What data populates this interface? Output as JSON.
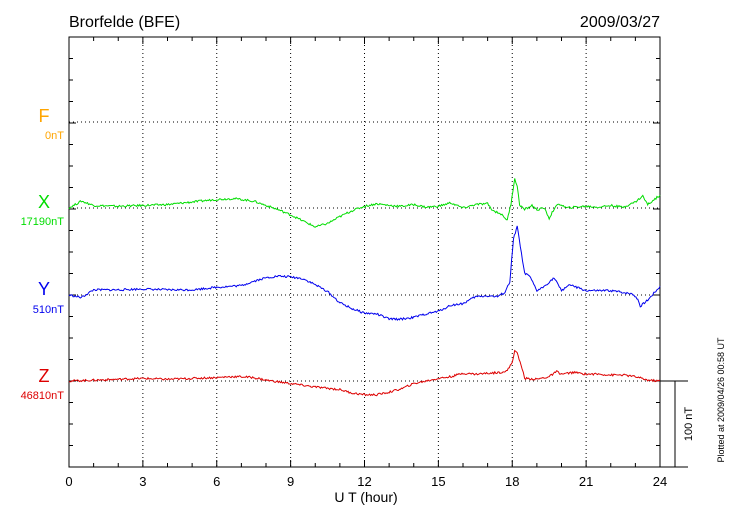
{
  "chart_data": {
    "type": "line",
    "title": "Brorfelde (BFE)",
    "date": "2009/03/27",
    "xlabel": "U T (hour)",
    "xlim": [
      0,
      24
    ],
    "xticks": [
      "0",
      "3",
      "6",
      "9",
      "12",
      "15",
      "18",
      "21",
      "24"
    ],
    "scale_bar_label": "100 nT",
    "plotted_note": "Plotted at 2009/04/26 00:58 UT",
    "grid": true,
    "series": [
      {
        "name": "F",
        "baseline_label": "0nT",
        "color": "#ffa500",
        "values": []
      },
      {
        "name": "X",
        "baseline_label": "17190nT",
        "color": "#00dd00",
        "x": [
          0,
          0.5,
          1,
          2,
          3,
          4,
          5,
          6,
          6.7,
          7.5,
          8,
          8.5,
          9,
          9.5,
          10,
          10.5,
          11,
          11.5,
          12,
          12.5,
          13,
          13.5,
          14,
          14.5,
          15,
          15.5,
          16,
          16.5,
          17,
          17.2,
          17.5,
          17.8,
          17.95,
          18.1,
          18.2,
          18.3,
          18.5,
          18.8,
          19,
          19.3,
          19.5,
          19.7,
          19.9,
          20.2,
          20.5,
          21,
          21.5,
          22,
          22.5,
          23,
          23.3,
          23.5,
          24
        ],
        "values": [
          0,
          8,
          3,
          2,
          3,
          4,
          7,
          10,
          11,
          8,
          3,
          -2,
          -8,
          -15,
          -22,
          -18,
          -10,
          -3,
          2,
          5,
          3,
          2,
          4,
          1,
          2,
          6,
          0,
          4,
          5,
          -3,
          -6,
          -14,
          5,
          35,
          25,
          4,
          -2,
          3,
          -2,
          0,
          -12,
          -1,
          5,
          0,
          1,
          2,
          1,
          3,
          1,
          7,
          14,
          4,
          15
        ]
      },
      {
        "name": "Y",
        "baseline_label": "510nT",
        "color": "#0000ee",
        "x": [
          0,
          0.5,
          1,
          2,
          3,
          4,
          5,
          6,
          7,
          7.5,
          8,
          8.5,
          9,
          9.5,
          10,
          10.5,
          11,
          11.5,
          12,
          12.5,
          13,
          13.5,
          14,
          14.5,
          15,
          15.5,
          16,
          16.5,
          17,
          17.4,
          17.7,
          17.9,
          18.05,
          18.2,
          18.5,
          18.7,
          19,
          19.2,
          19.5,
          19.7,
          20,
          20.3,
          20.5,
          21,
          21.5,
          22,
          22.5,
          22.9,
          23.1,
          23.2,
          23.5,
          24
        ],
        "values": [
          0,
          -3,
          6,
          6,
          7,
          6,
          6,
          9,
          11,
          16,
          20,
          22,
          21,
          19,
          12,
          4,
          -9,
          -16,
          -21,
          -22,
          -28,
          -28,
          -26,
          -22,
          -19,
          -12,
          -10,
          -2,
          -1,
          -2,
          3,
          15,
          65,
          80,
          25,
          22,
          5,
          8,
          15,
          20,
          5,
          12,
          10,
          5,
          5,
          5,
          3,
          1,
          -5,
          -13,
          -6,
          10
        ]
      },
      {
        "name": "Z",
        "baseline_label": "46810nT",
        "color": "#dd0000",
        "x": [
          0,
          1,
          2,
          3,
          4,
          5,
          6,
          6.5,
          7,
          7.5,
          8,
          9,
          10,
          11,
          11.5,
          12,
          12.5,
          13,
          13.5,
          14,
          14.5,
          15,
          15.5,
          16,
          16.5,
          17,
          17.5,
          17.8,
          18,
          18.1,
          18.2,
          18.4,
          18.5,
          19,
          19.5,
          19.8,
          20,
          20.5,
          21,
          21.5,
          22,
          22.5,
          23,
          23.5,
          24
        ],
        "values": [
          0,
          1,
          2,
          3,
          2,
          3,
          4,
          5,
          5,
          4,
          1,
          -3,
          -7,
          -10,
          -14,
          -16,
          -16,
          -13,
          -9,
          -3,
          0,
          3,
          5,
          9,
          8,
          9,
          10,
          12,
          22,
          36,
          32,
          15,
          3,
          2,
          5,
          11,
          8,
          10,
          8,
          8,
          7,
          7,
          5,
          1,
          0
        ]
      }
    ]
  }
}
